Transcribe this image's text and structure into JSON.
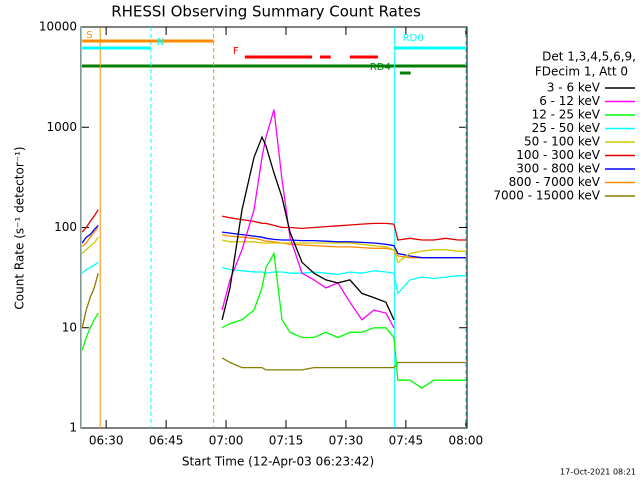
{
  "chart_data": {
    "type": "line",
    "title": "RHESSI Observing Summary Count Rates",
    "xlabel": "Start Time (12-Apr-03 06:23:42)",
    "ylabel": "Count Rate (s⁻¹ detector⁻¹)",
    "legend_header": [
      "Det 1,3,4,5,6,9,",
      "FDecim 1, Att 0"
    ],
    "footer": "17-Oct-2021 08:21",
    "log_y": true,
    "xlim": [
      383.7,
      480.3
    ],
    "ylim": [
      1,
      10000
    ],
    "yticks": [
      1,
      10,
      100,
      1000,
      10000
    ],
    "xticks": [
      {
        "value": 390,
        "label": "06:30"
      },
      {
        "value": 405,
        "label": "06:45"
      },
      {
        "value": 420,
        "label": "07:00"
      },
      {
        "value": 435,
        "label": "07:15"
      },
      {
        "value": 450,
        "label": "07:30"
      },
      {
        "value": 465,
        "label": "07:45"
      },
      {
        "value": 480,
        "label": "08:00"
      }
    ],
    "x": [
      384,
      385,
      386,
      387,
      388,
      390,
      419,
      421,
      424,
      427,
      429,
      430,
      432,
      434,
      436,
      439,
      442,
      445,
      448,
      451,
      454,
      457,
      460,
      462,
      463,
      466,
      469,
      472,
      475,
      478,
      480
    ],
    "series": [
      {
        "name": "3 - 6 keV",
        "color": "#000000",
        "values": [
          null,
          null,
          null,
          null,
          null,
          null,
          12,
          25,
          150,
          500,
          800,
          650,
          350,
          200,
          90,
          45,
          35,
          30,
          28,
          30,
          22,
          20,
          18,
          12,
          null,
          null,
          null,
          null,
          null,
          null,
          null
        ]
      },
      {
        "name": "6 - 12 keV",
        "color": "#ff00ff",
        "values": [
          null,
          null,
          null,
          null,
          null,
          null,
          15,
          30,
          60,
          150,
          500,
          800,
          1500,
          300,
          80,
          35,
          30,
          25,
          28,
          18,
          12,
          15,
          14,
          10,
          null,
          null,
          null,
          null,
          null,
          null,
          null
        ]
      },
      {
        "name": "12 - 25 keV",
        "color": "#00ff00",
        "values": [
          6,
          8,
          10,
          12,
          14,
          null,
          10,
          11,
          12,
          15,
          25,
          40,
          55,
          12,
          9,
          8,
          8,
          9,
          8,
          9,
          9,
          10,
          10,
          8,
          3,
          3,
          2.5,
          3,
          3,
          3,
          3
        ]
      },
      {
        "name": "25 - 50 keV",
        "color": "#00ffff",
        "values": [
          35,
          38,
          40,
          42,
          45,
          null,
          40,
          38,
          37,
          36,
          36,
          35,
          36,
          36,
          35,
          35,
          36,
          35,
          34,
          36,
          35,
          37,
          36,
          35,
          22,
          30,
          32,
          31,
          32,
          33,
          33
        ]
      },
      {
        "name": "50 - 100 keV",
        "color": "#d2c800",
        "values": [
          55,
          60,
          65,
          70,
          80,
          null,
          75,
          72,
          72,
          72,
          70,
          70,
          70,
          70,
          70,
          70,
          70,
          70,
          70,
          70,
          68,
          66,
          64,
          60,
          45,
          55,
          58,
          60,
          60,
          58,
          58
        ]
      },
      {
        "name": "100 - 300 keV",
        "color": "#e00000",
        "values": [
          90,
          100,
          115,
          130,
          150,
          null,
          130,
          125,
          120,
          115,
          110,
          110,
          105,
          100,
          100,
          98,
          100,
          102,
          104,
          106,
          108,
          110,
          110,
          108,
          75,
          78,
          75,
          75,
          78,
          75,
          75
        ]
      },
      {
        "name": "300 - 800 keV",
        "color": "#0000ff",
        "values": [
          70,
          80,
          85,
          95,
          105,
          null,
          90,
          88,
          85,
          82,
          80,
          78,
          76,
          75,
          75,
          74,
          74,
          73,
          72,
          72,
          71,
          70,
          68,
          66,
          55,
          52,
          50,
          50,
          50,
          50,
          50
        ]
      },
      {
        "name": "800 - 7000 keV",
        "color": "#ff8c00",
        "values": [
          65,
          70,
          80,
          90,
          100,
          null,
          85,
          82,
          80,
          78,
          75,
          73,
          72,
          70,
          68,
          67,
          66,
          65,
          64,
          64,
          63,
          62,
          62,
          60,
          52,
          50,
          50,
          50,
          50,
          50,
          50
        ]
      },
      {
        "name": "7000 - 15000 keV",
        "color": "#8b7d00",
        "values": [
          10,
          15,
          20,
          25,
          35,
          null,
          5,
          4.5,
          4,
          4,
          4,
          3.8,
          3.8,
          3.8,
          3.8,
          3.8,
          4,
          4,
          4,
          4,
          4,
          4,
          4,
          4,
          4.5,
          4.5,
          4.5,
          4.5,
          4.5,
          4.5,
          4.5
        ]
      }
    ],
    "vlines": [
      {
        "x": 383.8,
        "color": "#00ffff",
        "dashed": false
      },
      {
        "x": 388.5,
        "color": "#ff8c00",
        "dashed": false
      },
      {
        "x": 401.2,
        "color": "#00ffff",
        "dashed": true
      },
      {
        "x": 416.9,
        "color": "#ff8c00",
        "dashed": true
      },
      {
        "x": 462.2,
        "color": "#00ffff",
        "dashed": false
      },
      {
        "x": 480,
        "color": "#00ffff",
        "dashed": true
      }
    ],
    "flags": [
      {
        "label": "S",
        "color": "#ff8c00",
        "segments": [
          [
            384,
            416.9
          ]
        ]
      },
      {
        "label": "N",
        "color": "#00ffff",
        "segments": [
          [
            384,
            401.2
          ]
        ]
      },
      {
        "label": "F",
        "color": "#ff0000",
        "segments": [
          [
            424.7,
            441.5
          ],
          [
            443.5,
            446.2
          ],
          [
            451,
            458
          ]
        ]
      },
      {
        "label": "RD0",
        "color": "#00ffff",
        "segments": [
          [
            462.2,
            480
          ]
        ]
      },
      {
        "label": "RD4",
        "color": "#008000",
        "segments": [
          [
            463.5,
            466.2
          ]
        ]
      }
    ]
  }
}
